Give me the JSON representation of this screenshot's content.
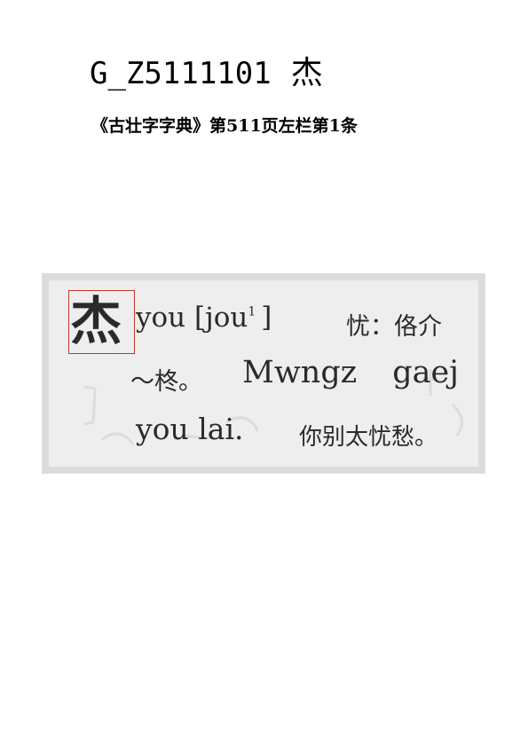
{
  "header": {
    "code": "G_Z5111101",
    "glyph": "杰"
  },
  "source": "《古壮字字典》第511页左栏第1条",
  "entry": {
    "head_char": "杰",
    "line1_roman": "you [jou",
    "line1_tone": "1",
    "line1_close": "]",
    "line1_gloss": "忧：佫介",
    "line2_cjk": "～柊。",
    "line2_word1": "Mwngz",
    "line2_word2": "gaej",
    "line3_roman": "you lai.",
    "line3_gloss": "你别太忧愁。"
  }
}
